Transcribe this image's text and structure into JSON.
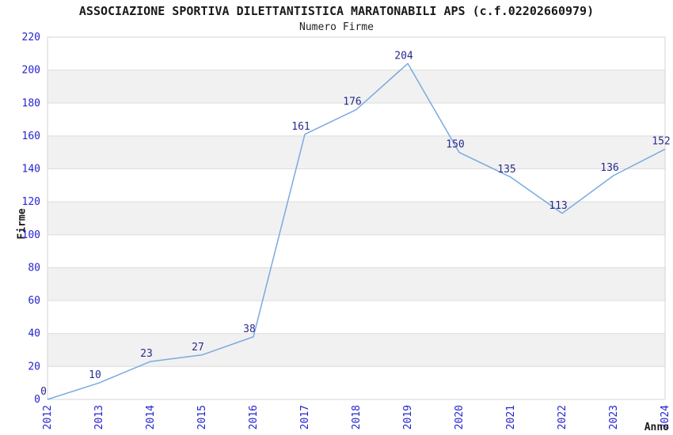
{
  "header": {
    "title": "ASSOCIAZIONE SPORTIVA DILETTANTISTICA MARATONABILI APS (c.f.02202660979)",
    "subtitle": "Numero Firme"
  },
  "chart_data": {
    "type": "line",
    "title": "ASSOCIAZIONE SPORTIVA DILETTANTISTICA MARATONABILI APS (c.f.02202660979)",
    "subtitle": "Numero Firme",
    "xlabel": "Anno",
    "ylabel": "Firme",
    "categories": [
      "2012",
      "2013",
      "2014",
      "2015",
      "2016",
      "2017",
      "2018",
      "2019",
      "2020",
      "2021",
      "2022",
      "2023",
      "2024"
    ],
    "values": [
      0,
      10,
      23,
      27,
      38,
      161,
      176,
      204,
      150,
      135,
      113,
      136,
      152
    ],
    "ylim": [
      0,
      220
    ],
    "ytick_step": 20,
    "grid": "horizontal-bands",
    "legend": "none",
    "point_labels_shown": true,
    "colors": {
      "line": "#79aadf",
      "tick_label": "#2424d0",
      "point_label": "#2b2b8c",
      "band_gray": "#f1f1f1",
      "band_white": "#ffffff",
      "gridline": "#dedede",
      "border": "#d4d4d4",
      "title": "#1a1a1a"
    }
  }
}
